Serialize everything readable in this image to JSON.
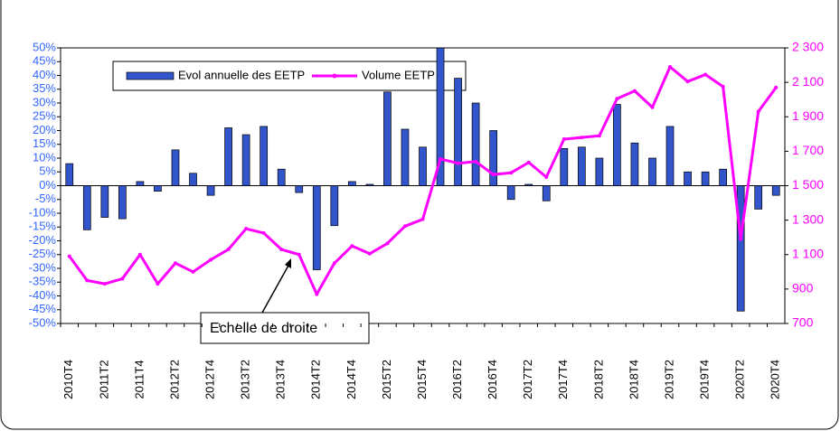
{
  "chart_data": {
    "type": "bar_line",
    "categories": [
      "2010T4",
      null,
      "2011T2",
      null,
      "2011T4",
      null,
      "2012T2",
      null,
      "2012T4",
      null,
      "2013T2",
      null,
      "2013T4",
      null,
      "2014T2",
      null,
      "2014T4",
      null,
      "2015T2",
      null,
      "2015T4",
      null,
      "2016T2",
      null,
      "2016T4",
      null,
      "2017T2",
      null,
      "2017T4",
      null,
      "2018T2",
      null,
      "2018T4",
      null,
      "2019T2",
      null,
      "2019T4",
      null,
      "2020T2",
      null,
      "2020T4"
    ],
    "series": [
      {
        "name": "Evol annuelle des EETP",
        "type": "bar",
        "color": "#3355cc",
        "axis": "y",
        "values": [
          8,
          -16,
          -11.5,
          -12,
          1.5,
          -2,
          13,
          4.5,
          -3.5,
          21,
          18.5,
          21.5,
          6,
          -2.5,
          -30.5,
          -14.5,
          1.5,
          0.5,
          34,
          20.5,
          14,
          50,
          39,
          30,
          20,
          -5,
          0.5,
          -5.5,
          13.5,
          14,
          10,
          29.5,
          15.5,
          10,
          21.5,
          5,
          5,
          6,
          -45.5,
          -8.5,
          -3.5
        ]
      },
      {
        "name": "Volume EETP",
        "type": "line",
        "color": "#ff00ff",
        "axis": "y2",
        "values": [
          1090,
          950,
          930,
          960,
          1100,
          930,
          1050,
          1000,
          1070,
          1130,
          1250,
          1225,
          1130,
          1100,
          870,
          1050,
          1150,
          1105,
          1165,
          1265,
          1305,
          1655,
          1630,
          1640,
          1565,
          1575,
          1635,
          1550,
          1770,
          1780,
          1790,
          2005,
          2050,
          1955,
          2190,
          2105,
          2145,
          2075,
          1190,
          1930,
          2070
        ]
      }
    ],
    "ylim": [
      -50,
      50
    ],
    "yticks": [
      {
        "value": -50,
        "label": "-50%"
      },
      {
        "value": -45,
        "label": "-45%"
      },
      {
        "value": -40,
        "label": "-40%"
      },
      {
        "value": -35,
        "label": "-35%"
      },
      {
        "value": -30,
        "label": "-30%"
      },
      {
        "value": -25,
        "label": "-25%"
      },
      {
        "value": -20,
        "label": "-20%"
      },
      {
        "value": -15,
        "label": "-15%"
      },
      {
        "value": -10,
        "label": "-10%"
      },
      {
        "value": -5,
        "label": "-5%"
      },
      {
        "value": 0,
        "label": "0%"
      },
      {
        "value": 5,
        "label": "5%"
      },
      {
        "value": 10,
        "label": "10%"
      },
      {
        "value": 15,
        "label": "15%"
      },
      {
        "value": 20,
        "label": "20%"
      },
      {
        "value": 25,
        "label": "25%"
      },
      {
        "value": 30,
        "label": "30%"
      },
      {
        "value": 35,
        "label": "35%"
      },
      {
        "value": 40,
        "label": "40%"
      },
      {
        "value": 45,
        "label": "45%"
      },
      {
        "value": 50,
        "label": "50%"
      }
    ],
    "y2lim": [
      700,
      2300
    ],
    "y2ticks": [
      700,
      900,
      {
        "value": 1100,
        "label": "1 100"
      },
      {
        "value": 1300,
        "label": "1 300"
      },
      {
        "value": 1500,
        "label": "1 500"
      },
      {
        "value": 1700,
        "label": "1 700"
      },
      {
        "value": 1900,
        "label": "1 900"
      },
      {
        "value": 2100,
        "label": "2 100"
      },
      {
        "value": 2300,
        "label": "2 300"
      }
    ],
    "y_tick_color": "#3366ff",
    "y2_tick_color": "#ff00ff",
    "grid": false,
    "legend": "top-left",
    "annotation": "Echelle de droite"
  }
}
